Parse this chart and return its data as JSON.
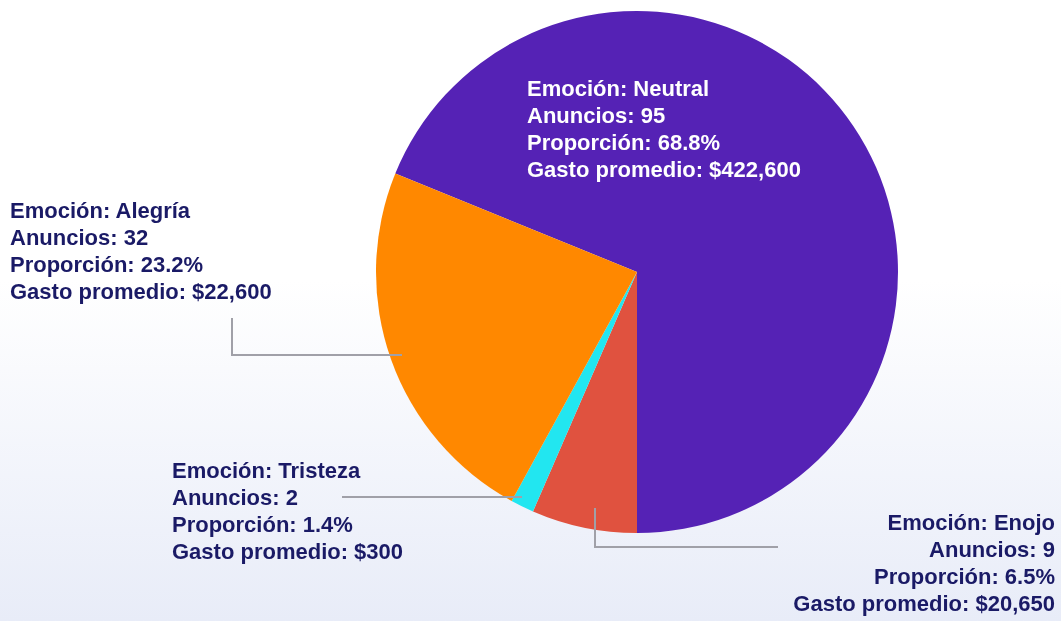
{
  "chart_data": {
    "type": "pie",
    "categories": [
      "Emoción: Neutral",
      "Emoción: Enojo",
      "Emoción: Tristeza",
      "Emoción: Alegría"
    ],
    "values": [
      95,
      9,
      2,
      32
    ],
    "colors": [
      "#5522b5",
      "#e0523f",
      "#22e6f0",
      "#ff8800"
    ],
    "value_labels": [
      "Anuncios: 95\nProporción: 68.8%\nGasto promedio: $422,600",
      "Anuncios: 9\nProporción: 6.5%\nGasto promedio: $20,650",
      "Anuncios: 2\nProporción: 1.4%\nGasto promedio: $300",
      "Anuncios: 32\nProporción: 23.2%\nGasto promedio: $22,600"
    ]
  }
}
